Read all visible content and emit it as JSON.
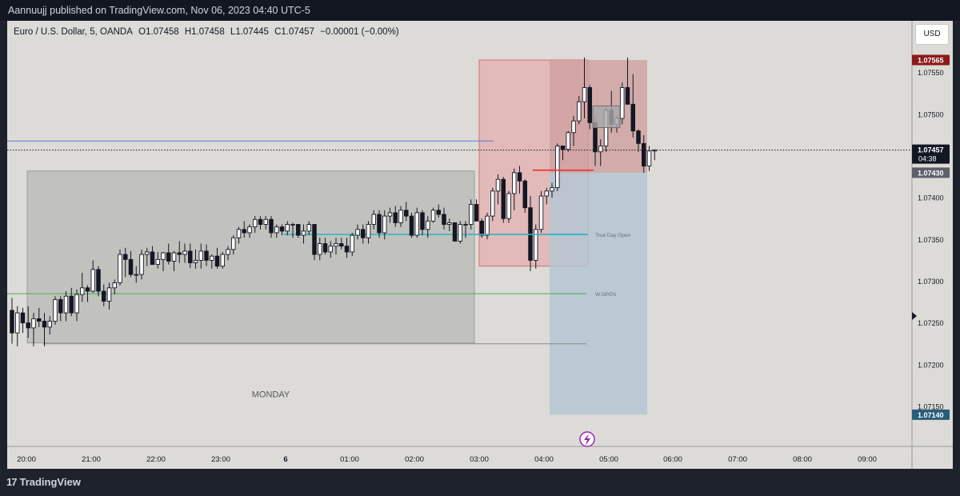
{
  "header": {
    "published_by": "Aannuujj published on TradingView.com, Nov 06, 2023 04:40 UTC-5"
  },
  "legend": {
    "symbol": "Euro / U.S. Dollar, 5, OANDA",
    "open": "O1.07458",
    "high": "H1.07458",
    "low": "L1.07445",
    "close": "C1.07457",
    "change": "−0.00001 (−0.00%)"
  },
  "currency_button": "USD",
  "footer": {
    "brand": "TradingView",
    "logo_glyph": "17"
  },
  "chart_data": {
    "type": "candlestick",
    "instrument": "EUR/USD",
    "interval": "5",
    "source": "OANDA",
    "x_tick_labels": [
      "20:00",
      "21:00",
      "22:00",
      "23:00",
      "6",
      "01:00",
      "02:00",
      "03:00",
      "04:00",
      "05:00",
      "06:00",
      "07:00",
      "08:00",
      "09:00"
    ],
    "y_tick_labels": [
      "1.07550",
      "1.07500",
      "1.07450",
      "1.07400",
      "1.07350",
      "1.07300",
      "1.07250",
      "1.07200",
      "1.07150"
    ],
    "y_ticks": [
      1.0755,
      1.075,
      1.0745,
      1.074,
      1.0735,
      1.073,
      1.0725,
      1.072,
      1.0715
    ],
    "ylim": [
      1.07102,
      1.07612
    ],
    "last_price": {
      "value": 1.07457,
      "label": "1.07457",
      "countdown": "04:38"
    },
    "price_badges": [
      {
        "value": 1.07565,
        "label": "1.07565",
        "color": "#8b1a1a"
      },
      {
        "value": 1.0743,
        "label": "1.07430",
        "color": "#5d606b"
      },
      {
        "value": 1.0714,
        "label": "1.07140",
        "color": "#2a5d7a"
      }
    ],
    "candles": [
      [
        1.07265,
        1.0728,
        1.07225,
        1.07238
      ],
      [
        1.07238,
        1.0727,
        1.07222,
        1.07262
      ],
      [
        1.07262,
        1.07268,
        1.07238,
        1.0725
      ],
      [
        1.0725,
        1.0727,
        1.07232,
        1.07244
      ],
      [
        1.07244,
        1.07262,
        1.07222,
        1.07255
      ],
      [
        1.07255,
        1.07268,
        1.07245,
        1.07252
      ],
      [
        1.07252,
        1.07262,
        1.07222,
        1.07245
      ],
      [
        1.07245,
        1.07258,
        1.07236,
        1.07252
      ],
      [
        1.07252,
        1.07282,
        1.07248,
        1.07278
      ],
      [
        1.07278,
        1.07282,
        1.07252,
        1.07262
      ],
      [
        1.07262,
        1.07288,
        1.07252,
        1.07282
      ],
      [
        1.07282,
        1.07292,
        1.07258,
        1.07262
      ],
      [
        1.07262,
        1.0729,
        1.07252,
        1.07284
      ],
      [
        1.07284,
        1.0731,
        1.07275,
        1.07292
      ],
      [
        1.07292,
        1.07295,
        1.07275,
        1.07288
      ],
      [
        1.07288,
        1.07325,
        1.07286,
        1.07314
      ],
      [
        1.07314,
        1.07318,
        1.07282,
        1.07288
      ],
      [
        1.07288,
        1.07296,
        1.0727,
        1.07276
      ],
      [
        1.07276,
        1.07298,
        1.07266,
        1.07292
      ],
      [
        1.07292,
        1.07302,
        1.07284,
        1.07298
      ],
      [
        1.07298,
        1.07338,
        1.07295,
        1.07332
      ],
      [
        1.07332,
        1.0734,
        1.07305,
        1.07326
      ],
      [
        1.07326,
        1.07336,
        1.07305,
        1.07308
      ],
      [
        1.07308,
        1.07318,
        1.07298,
        1.07308
      ],
      [
        1.07308,
        1.07338,
        1.07302,
        1.07332
      ],
      [
        1.07332,
        1.0734,
        1.07318,
        1.07335
      ],
      [
        1.07335,
        1.07342,
        1.0732,
        1.0732
      ],
      [
        1.0732,
        1.07335,
        1.07315,
        1.07326
      ],
      [
        1.07326,
        1.07335,
        1.07312,
        1.07334
      ],
      [
        1.07334,
        1.07345,
        1.0732,
        1.07324
      ],
      [
        1.07324,
        1.07336,
        1.07312,
        1.07334
      ],
      [
        1.07334,
        1.07348,
        1.07322,
        1.07332
      ],
      [
        1.07332,
        1.07345,
        1.07322,
        1.07336
      ],
      [
        1.07336,
        1.07345,
        1.07316,
        1.07322
      ],
      [
        1.07322,
        1.07338,
        1.07315,
        1.07325
      ],
      [
        1.07325,
        1.07345,
        1.07315,
        1.07336
      ],
      [
        1.07336,
        1.07344,
        1.07318,
        1.07325
      ],
      [
        1.07325,
        1.07332,
        1.07315,
        1.0733
      ],
      [
        1.0733,
        1.0734,
        1.07315,
        1.07318
      ],
      [
        1.07318,
        1.07335,
        1.07315,
        1.07332
      ],
      [
        1.07332,
        1.07342,
        1.07325,
        1.07338
      ],
      [
        1.07338,
        1.07355,
        1.07332,
        1.07352
      ],
      [
        1.07352,
        1.07365,
        1.07345,
        1.07362
      ],
      [
        1.07362,
        1.07372,
        1.07352,
        1.07358
      ],
      [
        1.07358,
        1.07368,
        1.07352,
        1.07365
      ],
      [
        1.07365,
        1.07378,
        1.07358,
        1.07374
      ],
      [
        1.07374,
        1.07378,
        1.07362,
        1.07368
      ],
      [
        1.07368,
        1.07378,
        1.07362,
        1.07374
      ],
      [
        1.07374,
        1.07378,
        1.07352,
        1.07358
      ],
      [
        1.07358,
        1.07368,
        1.07352,
        1.07365
      ],
      [
        1.07365,
        1.07368,
        1.07355,
        1.0736
      ],
      [
        1.0736,
        1.07372,
        1.07355,
        1.07368
      ],
      [
        1.07368,
        1.0737,
        1.07352,
        1.07368
      ],
      [
        1.07368,
        1.07368,
        1.07352,
        1.07355
      ],
      [
        1.07355,
        1.07368,
        1.07345,
        1.0736
      ],
      [
        1.0736,
        1.07372,
        1.07355,
        1.07368
      ],
      [
        1.07368,
        1.07368,
        1.07325,
        1.07332
      ],
      [
        1.07332,
        1.07352,
        1.07325,
        1.07345
      ],
      [
        1.07345,
        1.07352,
        1.07332,
        1.07335
      ],
      [
        1.07335,
        1.07348,
        1.07328,
        1.07342
      ],
      [
        1.07342,
        1.07352,
        1.07332,
        1.07345
      ],
      [
        1.07345,
        1.07352,
        1.07338,
        1.07342
      ],
      [
        1.07342,
        1.07352,
        1.07328,
        1.07335
      ],
      [
        1.07335,
        1.07358,
        1.0733,
        1.07355
      ],
      [
        1.07355,
        1.07368,
        1.0735,
        1.07362
      ],
      [
        1.07362,
        1.07368,
        1.07345,
        1.07352
      ],
      [
        1.07352,
        1.07372,
        1.07345,
        1.07368
      ],
      [
        1.07368,
        1.07385,
        1.07362,
        1.0738
      ],
      [
        1.0738,
        1.07385,
        1.07352,
        1.07358
      ],
      [
        1.07358,
        1.07385,
        1.0735,
        1.07378
      ],
      [
        1.07378,
        1.07388,
        1.0737,
        1.07382
      ],
      [
        1.07382,
        1.0739,
        1.07365,
        1.0737
      ],
      [
        1.0737,
        1.0739,
        1.07365,
        1.07385
      ],
      [
        1.07385,
        1.07395,
        1.07372,
        1.07378
      ],
      [
        1.07378,
        1.07382,
        1.07352,
        1.07355
      ],
      [
        1.07355,
        1.07388,
        1.07352,
        1.07382
      ],
      [
        1.07382,
        1.07385,
        1.07355,
        1.07362
      ],
      [
        1.07362,
        1.07378,
        1.07352,
        1.07372
      ],
      [
        1.07372,
        1.07388,
        1.0737,
        1.07385
      ],
      [
        1.07385,
        1.07392,
        1.07376,
        1.0738
      ],
      [
        1.0738,
        1.07388,
        1.07362,
        1.07368
      ],
      [
        1.07368,
        1.07375,
        1.0736,
        1.0737
      ],
      [
        1.0737,
        1.0737,
        1.07348,
        1.07348
      ],
      [
        1.07348,
        1.07372,
        1.07345,
        1.07368
      ],
      [
        1.07368,
        1.07372,
        1.07352,
        1.07368
      ],
      [
        1.07368,
        1.07398,
        1.07362,
        1.07392
      ],
      [
        1.07392,
        1.07398,
        1.07372,
        1.07372
      ],
      [
        1.07372,
        1.07375,
        1.07352,
        1.07355
      ],
      [
        1.07355,
        1.07382,
        1.0735,
        1.07378
      ],
      [
        1.07378,
        1.07412,
        1.07372,
        1.07408
      ],
      [
        1.07408,
        1.07428,
        1.07392,
        1.07422
      ],
      [
        1.07422,
        1.07425,
        1.0737,
        1.07375
      ],
      [
        1.07375,
        1.07408,
        1.0737,
        1.07405
      ],
      [
        1.07405,
        1.07435,
        1.07385,
        1.0743
      ],
      [
        1.0743,
        1.07438,
        1.07405,
        1.0742
      ],
      [
        1.0742,
        1.07422,
        1.07382,
        1.07388
      ],
      [
        1.07388,
        1.07402,
        1.07312,
        1.07325
      ],
      [
        1.07325,
        1.07368,
        1.07315,
        1.07362
      ],
      [
        1.07362,
        1.07408,
        1.07358,
        1.07402
      ],
      [
        1.07402,
        1.07412,
        1.07392,
        1.07408
      ],
      [
        1.07408,
        1.07418,
        1.074,
        1.07412
      ],
      [
        1.07412,
        1.07465,
        1.07408,
        1.07462
      ],
      [
        1.07462,
        1.07462,
        1.07445,
        1.07458
      ],
      [
        1.07458,
        1.0748,
        1.07455,
        1.07478
      ],
      [
        1.07478,
        1.07498,
        1.07462,
        1.07492
      ],
      [
        1.07492,
        1.07522,
        1.07488,
        1.07515
      ],
      [
        1.07515,
        1.07568,
        1.07495,
        1.07532
      ],
      [
        1.07532,
        1.07535,
        1.07482,
        1.0749
      ],
      [
        1.0749,
        1.07498,
        1.07438,
        1.07455
      ],
      [
        1.07455,
        1.0747,
        1.07438,
        1.07462
      ],
      [
        1.07462,
        1.07508,
        1.07455,
        1.07505
      ],
      [
        1.07505,
        1.07528,
        1.07478,
        1.07488
      ],
      [
        1.07488,
        1.07498,
        1.07478,
        1.07495
      ],
      [
        1.07495,
        1.07538,
        1.07488,
        1.07532
      ],
      [
        1.07532,
        1.07568,
        1.07512,
        1.07512
      ],
      [
        1.07512,
        1.07548,
        1.07472,
        1.0748
      ],
      [
        1.0748,
        1.07482,
        1.07455,
        1.07465
      ],
      [
        1.07465,
        1.07475,
        1.0743,
        1.07438
      ],
      [
        1.07438,
        1.07462,
        1.07432,
        1.07456
      ],
      [
        1.07456,
        1.07458,
        1.07445,
        1.07457
      ]
    ],
    "annotations": [
      {
        "type": "box",
        "label": "MONDAY",
        "y_top": 1.07432,
        "y_bottom": 1.07226,
        "fill": "#c1c2bd",
        "stroke": "#9a9b98"
      },
      {
        "type": "box",
        "y_top": 1.07565,
        "y_bottom": 1.07318,
        "fill": "#e3b1b1",
        "stroke": "#d46f6f"
      },
      {
        "type": "box",
        "y_top": 1.07565,
        "y_bottom": 1.0743,
        "fill": "#d09f9f"
      },
      {
        "type": "box",
        "y_top": 1.0743,
        "y_bottom": 1.0714,
        "fill": "#b4c6d2"
      },
      {
        "type": "box",
        "y_top": 1.0751,
        "y_bottom": 1.07484,
        "fill": "#a8a9aa",
        "stroke": "#6d6f73"
      },
      {
        "type": "hline",
        "label": "True Day Open",
        "y": 1.07356,
        "color": "#35b5c8"
      },
      {
        "type": "hline",
        "label": "W.OPEN",
        "y": 1.07285,
        "color": "#4caf50"
      },
      {
        "type": "hline",
        "y": 1.07468,
        "color": "#5b78d6"
      },
      {
        "type": "hline",
        "y": 1.07225,
        "color": "#8c8c8c"
      },
      {
        "type": "hline",
        "y": 1.07433,
        "color": "#e53935"
      }
    ],
    "grid": false
  }
}
